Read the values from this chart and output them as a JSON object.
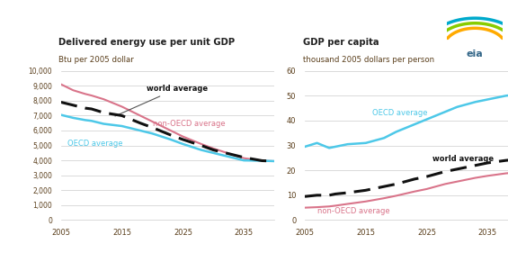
{
  "left_title1": "Delivered energy use per unit GDP",
  "left_title2": "Btu per 2005 dollar",
  "right_title1": "GDP per capita",
  "right_title2": "thousand 2005 dollars per person",
  "years": [
    2005,
    2007,
    2009,
    2010,
    2012,
    2015,
    2018,
    2020,
    2023,
    2025,
    2028,
    2030,
    2033,
    2035,
    2038,
    2040
  ],
  "left_world": [
    7900,
    7700,
    7500,
    7450,
    7200,
    7000,
    6500,
    6200,
    5700,
    5400,
    5000,
    4700,
    4400,
    4200,
    3980,
    3950
  ],
  "left_nonoecd": [
    9100,
    8700,
    8450,
    8350,
    8100,
    7600,
    7000,
    6600,
    6000,
    5600,
    5100,
    4800,
    4400,
    4150,
    3980,
    3950
  ],
  "left_oecd": [
    7050,
    6850,
    6700,
    6650,
    6450,
    6300,
    6000,
    5800,
    5400,
    5100,
    4700,
    4500,
    4200,
    4000,
    3980,
    3950
  ],
  "right_world": [
    9.5,
    10.0,
    10.0,
    10.5,
    11.0,
    12.0,
    13.5,
    14.5,
    16.5,
    17.5,
    19.5,
    20.5,
    22.0,
    23.0,
    24.0,
    24.5
  ],
  "right_nonoecd": [
    5.0,
    5.2,
    5.5,
    5.8,
    6.5,
    7.5,
    8.8,
    9.8,
    11.5,
    12.5,
    14.5,
    15.5,
    17.0,
    17.8,
    18.8,
    19.2
  ],
  "right_oecd": [
    29.5,
    31.0,
    29.0,
    29.5,
    30.5,
    31.0,
    33.0,
    35.5,
    38.5,
    40.5,
    43.5,
    45.5,
    47.5,
    48.5,
    50.0,
    50.5
  ],
  "color_world": "#111111",
  "color_nonoecd": "#d9748a",
  "color_oecd": "#4dc8e8",
  "bg_color": "#ffffff",
  "grid_color": "#cccccc",
  "text_color": "#5a3e1b",
  "label_color_nonoecd": "#d9748a",
  "label_color_oecd": "#4dc8e8",
  "label_color_world": "#111111"
}
